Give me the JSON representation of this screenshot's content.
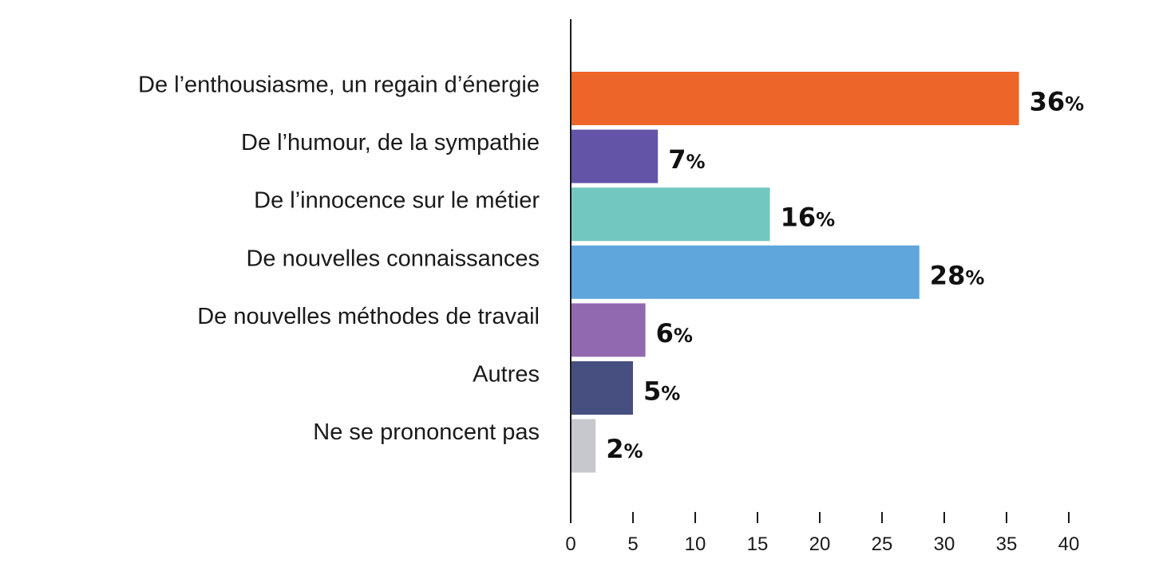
{
  "chart_data": {
    "type": "bar",
    "orientation": "horizontal",
    "title": "",
    "xlabel": "",
    "ylabel": "",
    "categories": [
      "De l’enthousiasme, un regain d’énergie",
      "De l’humour, de la sympathie",
      "De l’innocence sur le métier",
      "De nouvelles connaissances",
      "De nouvelles méthodes de travail",
      "Autres",
      "Ne se prononcent pas"
    ],
    "values": [
      36,
      7,
      16,
      28,
      6,
      5,
      2
    ],
    "value_labels": [
      "36",
      "7",
      "16",
      "28",
      "6",
      "5",
      "2"
    ],
    "value_suffix": "%",
    "colors": [
      "#ED6529",
      "#6354A8",
      "#72C8C0",
      "#5EA6DB",
      "#9169B0",
      "#474F81",
      "#C7C8CD"
    ],
    "xlim": [
      0,
      40
    ],
    "xticks": [
      0,
      5,
      10,
      15,
      20,
      25,
      30,
      35,
      40
    ],
    "xtick_labels": [
      "0",
      "5",
      "10",
      "15",
      "20",
      "25",
      "30",
      "35",
      "40"
    ],
    "grid": false,
    "legend": "none"
  }
}
